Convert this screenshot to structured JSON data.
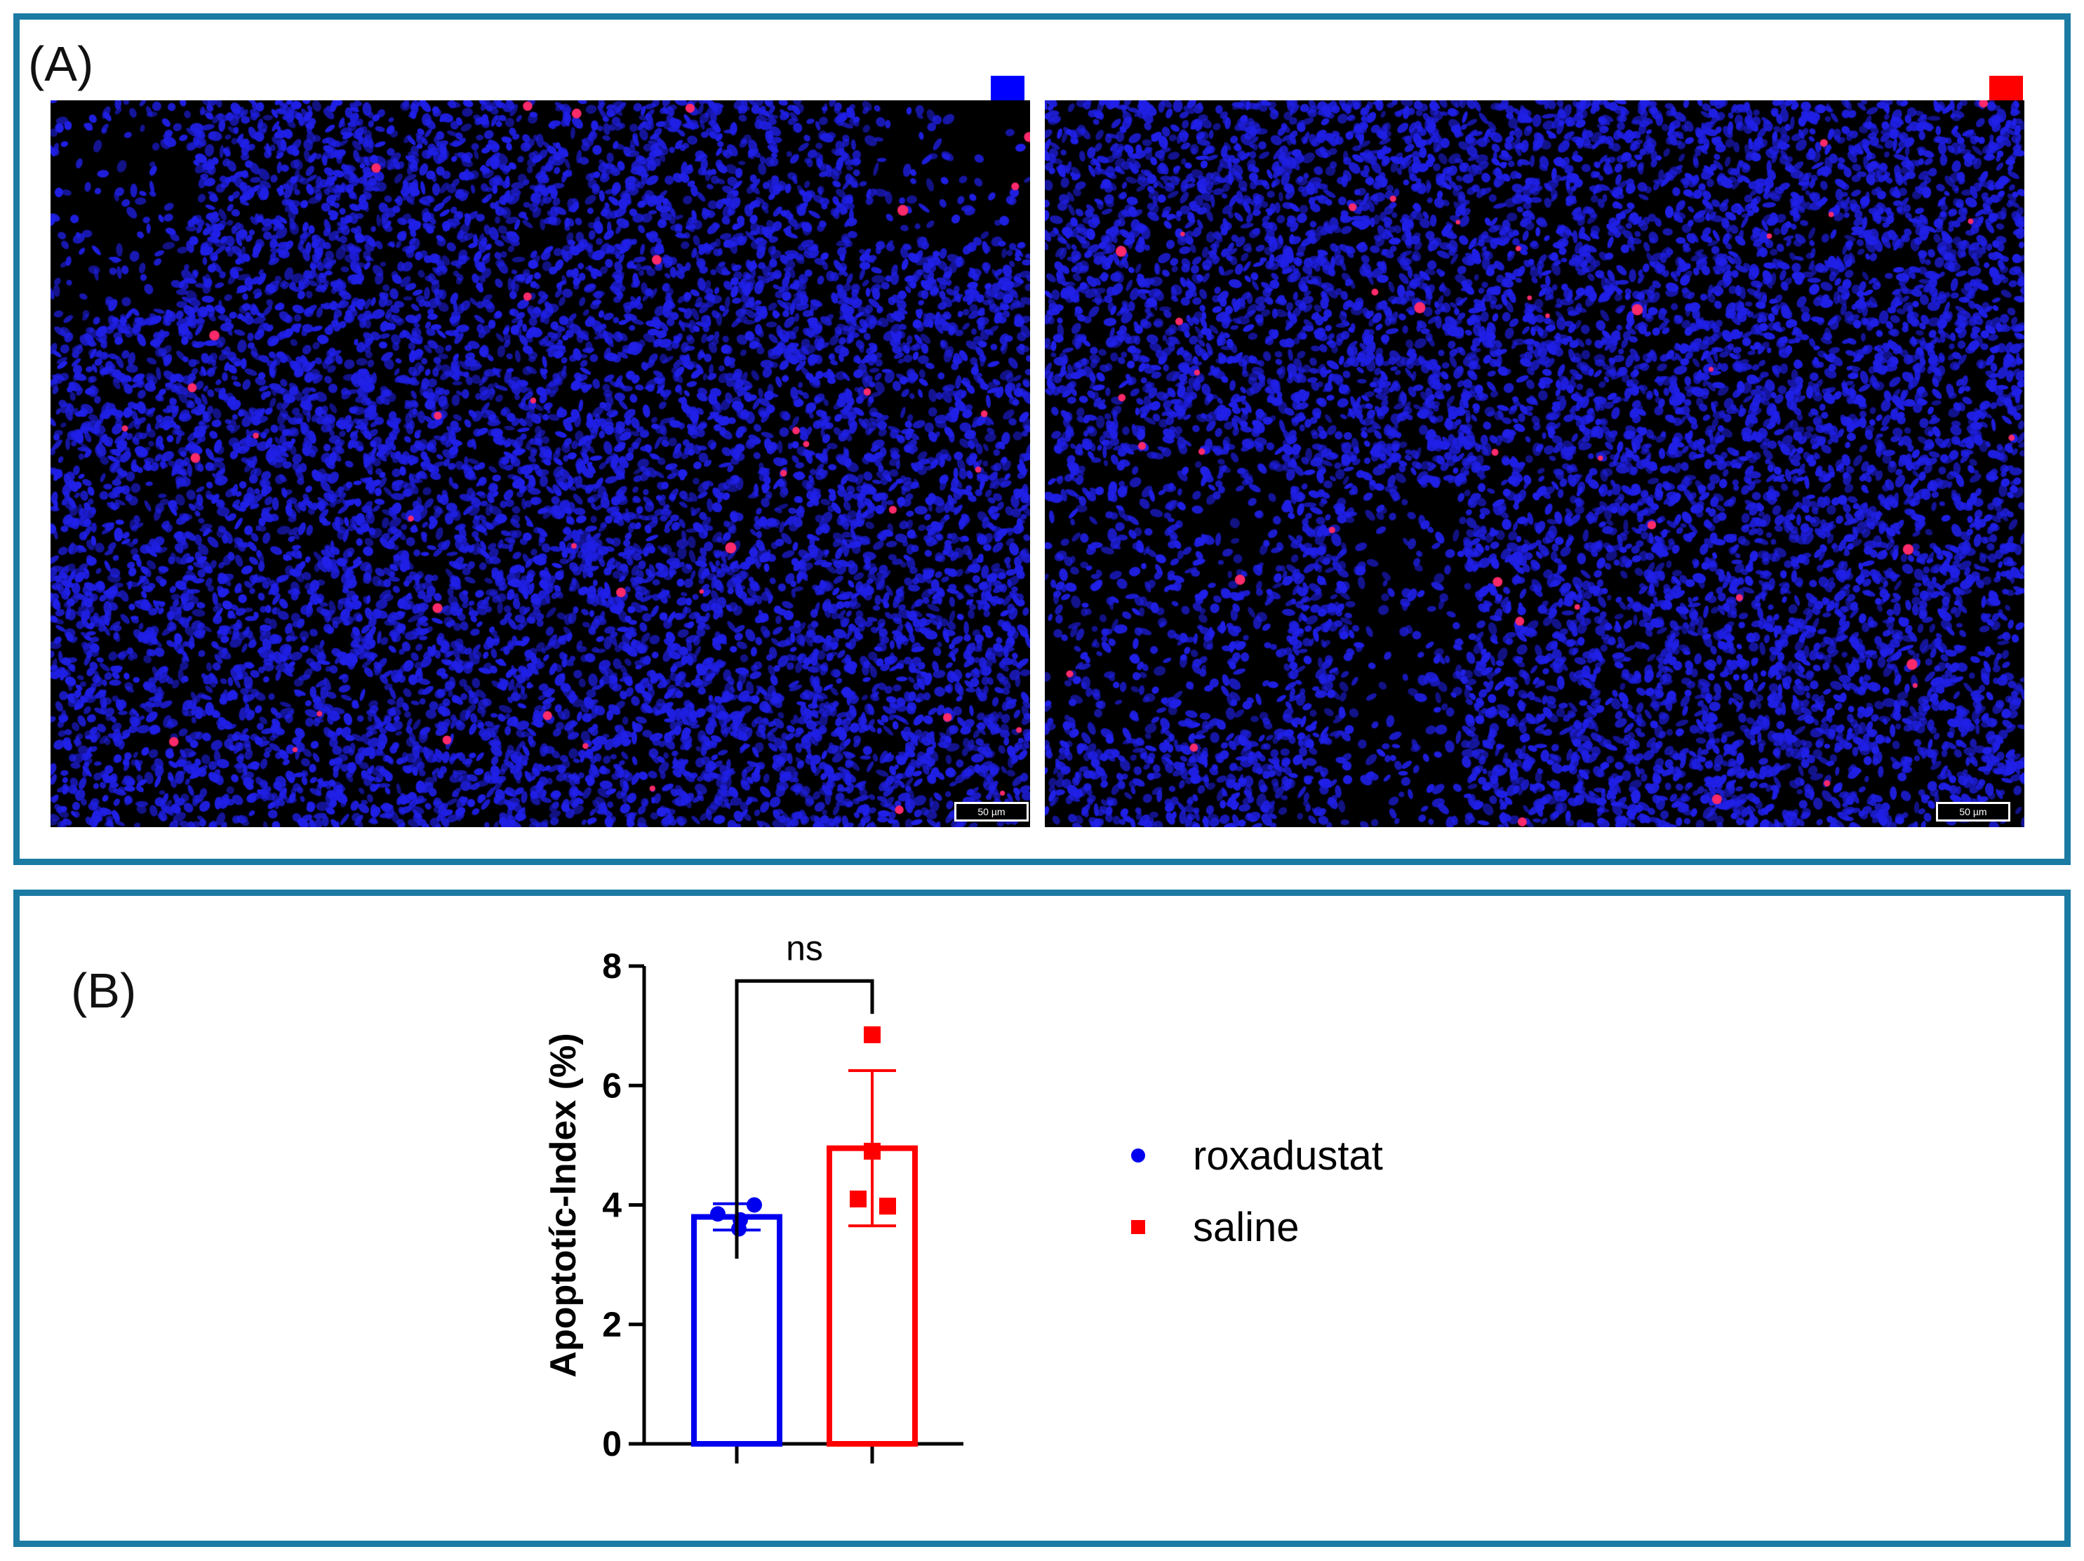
{
  "panels": {
    "a_label": "(A)",
    "b_label": "(B)"
  },
  "micrographs": [
    {
      "group": "roxadustat",
      "swatch_color": "#0000ff",
      "scale_label": "50 µm",
      "stain_colors": {
        "nuclei": "#2020e8",
        "apoptotic": "#ff2a6a"
      }
    },
    {
      "group": "saline",
      "swatch_color": "#ff0000",
      "scale_label": "50 µm",
      "stain_colors": {
        "nuclei": "#2020e8",
        "apoptotic": "#ff2a6a"
      }
    }
  ],
  "chart_data": {
    "type": "bar",
    "categories": [
      "roxadustat",
      "saline"
    ],
    "ylabel": "Apoptotíc-Index  (%)",
    "ylim": [
      0,
      8
    ],
    "yticks": [
      0,
      2,
      4,
      6,
      8
    ],
    "bars": [
      {
        "name": "roxadustat",
        "color": "#0000ee",
        "mean": 3.8,
        "sd": 0.22,
        "points": [
          3.85,
          3.75,
          4.0,
          3.6
        ],
        "marker": "circle"
      },
      {
        "name": "saline",
        "color": "#ff0000",
        "mean": 4.95,
        "sd": 1.3,
        "points": [
          6.85,
          4.9,
          4.1,
          3.98
        ],
        "marker": "square"
      }
    ],
    "significance": {
      "label": "ns",
      "between": [
        0,
        1
      ],
      "y": 7.75
    },
    "legend": {
      "placement": "right",
      "entries": [
        {
          "label": "roxadustat",
          "color": "#0000ee",
          "marker": "circle"
        },
        {
          "label": "saline",
          "color": "#ff0000",
          "marker": "square"
        }
      ]
    }
  }
}
